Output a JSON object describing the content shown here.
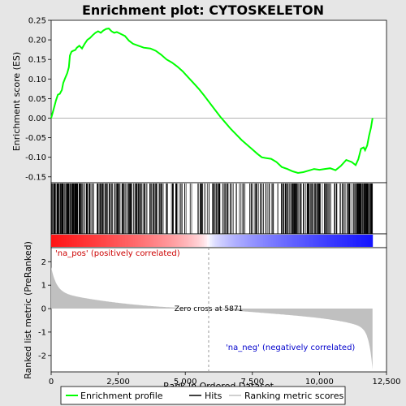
{
  "chart_data": {
    "type": "line",
    "title": "Enrichment plot: CYTOSKELETON",
    "xlabel": "Rank in Ordered Dataset",
    "ylabel_top": "Enrichment score (ES)",
    "ylabel_bottom": "Ranked list metric (PreRanked)",
    "x_range": [
      0,
      12500
    ],
    "x_ticks": [
      0,
      2500,
      5000,
      7500,
      10000,
      12500
    ],
    "x_tick_labels": [
      "0",
      "2,500",
      "5,000",
      "7,500",
      "10,000",
      "12,500"
    ],
    "es_ylim": [
      -0.165,
      0.25
    ],
    "es_ticks": [
      -0.15,
      -0.1,
      -0.05,
      0.0,
      0.05,
      0.1,
      0.15,
      0.2,
      0.25
    ],
    "es_tick_labels": [
      "-0.15",
      "-0.10",
      "-0.05",
      "0.00",
      "0.05",
      "0.10",
      "0.15",
      "0.20",
      "0.25"
    ],
    "metric_ylim": [
      -2.7,
      2.6
    ],
    "metric_ticks": [
      -2,
      -1,
      0,
      1,
      2
    ],
    "metric_tick_labels": [
      "-2",
      "-1",
      "0",
      "1",
      "2"
    ],
    "n_genes": 11979,
    "zero_cross_rank": 5871,
    "zero_cross_label": "Zero cross at 5871",
    "pos_label": "'na_pos' (positively correlated)",
    "neg_label": "'na_neg' (negatively correlated)",
    "grid": false,
    "series": [
      {
        "name": "Enrichment profile",
        "color": "#00ff00",
        "points": [
          [
            0,
            0.0
          ],
          [
            60,
            0.015
          ],
          [
            120,
            0.03
          ],
          [
            180,
            0.045
          ],
          [
            250,
            0.06
          ],
          [
            320,
            0.062
          ],
          [
            400,
            0.072
          ],
          [
            450,
            0.09
          ],
          [
            520,
            0.102
          ],
          [
            600,
            0.115
          ],
          [
            660,
            0.13
          ],
          [
            700,
            0.16
          ],
          [
            760,
            0.17
          ],
          [
            820,
            0.172
          ],
          [
            900,
            0.174
          ],
          [
            960,
            0.18
          ],
          [
            1050,
            0.185
          ],
          [
            1150,
            0.178
          ],
          [
            1250,
            0.19
          ],
          [
            1350,
            0.2
          ],
          [
            1450,
            0.205
          ],
          [
            1550,
            0.212
          ],
          [
            1650,
            0.218
          ],
          [
            1750,
            0.222
          ],
          [
            1850,
            0.218
          ],
          [
            1950,
            0.224
          ],
          [
            2050,
            0.228
          ],
          [
            2150,
            0.229
          ],
          [
            2250,
            0.222
          ],
          [
            2350,
            0.218
          ],
          [
            2450,
            0.22
          ],
          [
            2600,
            0.215
          ],
          [
            2750,
            0.21
          ],
          [
            2900,
            0.198
          ],
          [
            3050,
            0.19
          ],
          [
            3250,
            0.185
          ],
          [
            3450,
            0.18
          ],
          [
            3700,
            0.178
          ],
          [
            3900,
            0.172
          ],
          [
            4100,
            0.162
          ],
          [
            4300,
            0.15
          ],
          [
            4500,
            0.142
          ],
          [
            4700,
            0.132
          ],
          [
            4900,
            0.12
          ],
          [
            5100,
            0.105
          ],
          [
            5300,
            0.09
          ],
          [
            5500,
            0.075
          ],
          [
            5700,
            0.058
          ],
          [
            5900,
            0.04
          ],
          [
            6100,
            0.022
          ],
          [
            6300,
            0.004
          ],
          [
            6500,
            -0.012
          ],
          [
            6700,
            -0.028
          ],
          [
            6900,
            -0.042
          ],
          [
            7100,
            -0.056
          ],
          [
            7300,
            -0.068
          ],
          [
            7500,
            -0.08
          ],
          [
            7700,
            -0.092
          ],
          [
            7850,
            -0.1
          ],
          [
            8000,
            -0.102
          ],
          [
            8200,
            -0.104
          ],
          [
            8400,
            -0.112
          ],
          [
            8600,
            -0.125
          ],
          [
            8800,
            -0.13
          ],
          [
            9000,
            -0.136
          ],
          [
            9200,
            -0.14
          ],
          [
            9400,
            -0.138
          ],
          [
            9600,
            -0.134
          ],
          [
            9800,
            -0.13
          ],
          [
            10000,
            -0.132
          ],
          [
            10200,
            -0.13
          ],
          [
            10400,
            -0.128
          ],
          [
            10600,
            -0.133
          ],
          [
            10800,
            -0.122
          ],
          [
            11000,
            -0.107
          ],
          [
            11200,
            -0.112
          ],
          [
            11350,
            -0.12
          ],
          [
            11450,
            -0.105
          ],
          [
            11550,
            -0.078
          ],
          [
            11650,
            -0.075
          ],
          [
            11700,
            -0.082
          ],
          [
            11780,
            -0.07
          ],
          [
            11850,
            -0.045
          ],
          [
            11920,
            -0.025
          ],
          [
            11979,
            0.0
          ]
        ]
      },
      {
        "name": "Hits",
        "color": "#000000"
      },
      {
        "name": "Ranking metric scores",
        "color": "#c0c0c0"
      }
    ]
  }
}
